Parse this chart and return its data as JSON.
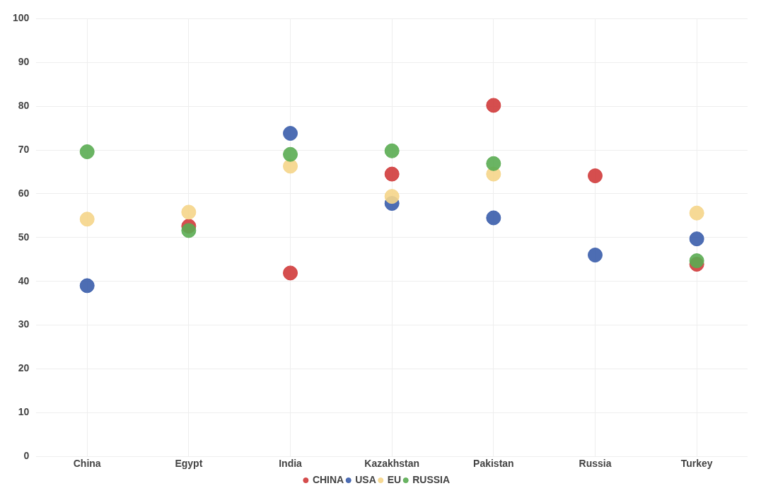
{
  "chart_data": {
    "type": "scatter",
    "categories": [
      "China",
      "Egypt",
      "India",
      "Kazakhstan",
      "Pakistan",
      "Russia",
      "Turkey"
    ],
    "series": [
      {
        "name": "CHINA",
        "color": "#d03b3b",
        "values": [
          null,
          52.6,
          41.9,
          64.5,
          80.2,
          64.1,
          43.9
        ]
      },
      {
        "name": "USA",
        "color": "#3a5dab",
        "values": [
          39.0,
          null,
          73.8,
          57.8,
          54.5,
          46.0,
          49.7
        ]
      },
      {
        "name": "EU",
        "color": "#f5d58a",
        "values": [
          54.2,
          55.8,
          66.3,
          59.4,
          64.5,
          null,
          55.6
        ]
      },
      {
        "name": "RUSSIA",
        "color": "#5aac52",
        "values": [
          69.6,
          51.6,
          69.0,
          69.8,
          66.9,
          null,
          44.7
        ]
      }
    ],
    "ylim": [
      0,
      100
    ],
    "yticks": [
      0,
      10,
      20,
      30,
      40,
      50,
      60,
      70,
      80,
      90,
      100
    ],
    "grid": true,
    "legend": "bottom",
    "marker": "circle"
  }
}
